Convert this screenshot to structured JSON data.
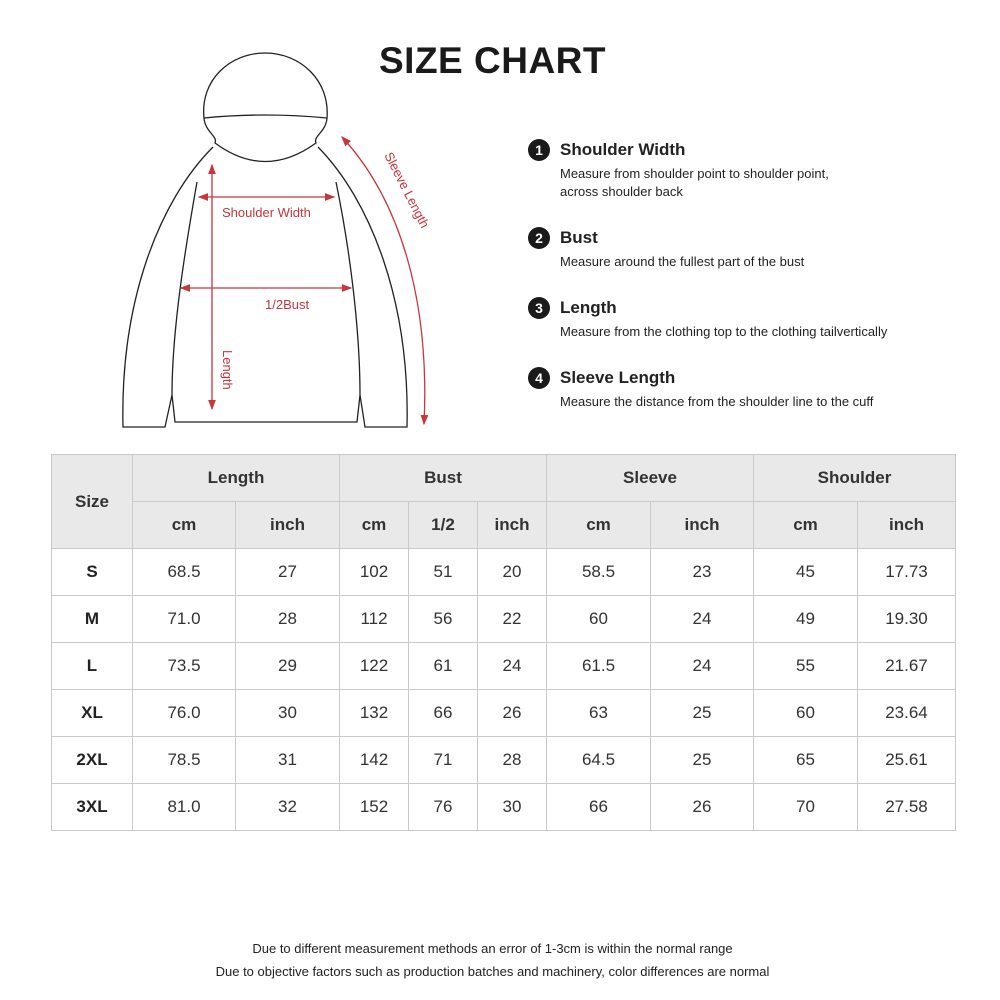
{
  "title": "SIZE CHART",
  "diagram": {
    "shoulder_label": "Shoulder Width",
    "bust_label": "1/2Bust",
    "length_label": "Length",
    "sleeve_label": "Sleeve Length",
    "arrow_color": "#c8363c"
  },
  "measurements": [
    {
      "num": "1",
      "name": "Shoulder Width",
      "desc": "Measure from shoulder point to shoulder point,\nacross shoulder back"
    },
    {
      "num": "2",
      "name": "Bust",
      "desc": "Measure around the fullest part of the bust"
    },
    {
      "num": "3",
      "name": "Length",
      "desc": "Measure from the clothing top to the clothing tailvertically"
    },
    {
      "num": "4",
      "name": "Sleeve Length",
      "desc": "Measure the distance from the shoulder line to the cuff"
    }
  ],
  "table": {
    "size_header": "Size",
    "groups": [
      "Length",
      "Bust",
      "Sleeve",
      "Shoulder"
    ],
    "subheaders": [
      "cm",
      "inch",
      "cm",
      "1/2",
      "inch",
      "cm",
      "inch",
      "cm",
      "inch"
    ],
    "rows": [
      [
        "S",
        "68.5",
        "27",
        "102",
        "51",
        "20",
        "58.5",
        "23",
        "45",
        "17.73"
      ],
      [
        "M",
        "71.0",
        "28",
        "112",
        "56",
        "22",
        "60",
        "24",
        "49",
        "19.30"
      ],
      [
        "L",
        "73.5",
        "29",
        "122",
        "61",
        "24",
        "61.5",
        "24",
        "55",
        "21.67"
      ],
      [
        "XL",
        "76.0",
        "30",
        "132",
        "66",
        "26",
        "63",
        "25",
        "60",
        "23.64"
      ],
      [
        "2XL",
        "78.5",
        "31",
        "142",
        "71",
        "28",
        "64.5",
        "25",
        "65",
        "25.61"
      ],
      [
        "3XL",
        "81.0",
        "32",
        "152",
        "76",
        "30",
        "66",
        "26",
        "70",
        "27.58"
      ]
    ]
  },
  "footer": [
    "Due to different measurement methods an error of 1-3cm is within the normal range",
    "Due to objective factors such as production batches and machinery, color differences are normal"
  ]
}
